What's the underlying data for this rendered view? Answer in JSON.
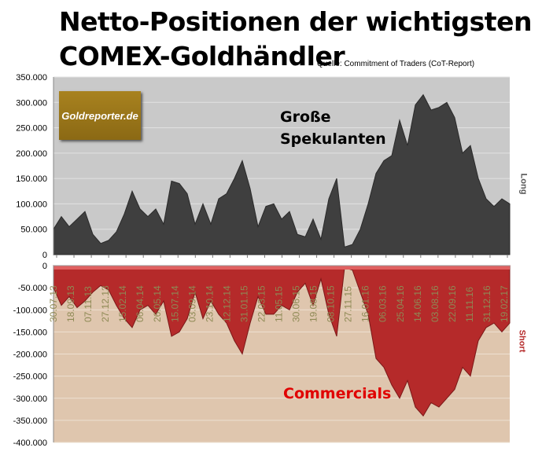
{
  "title_line1": "Netto-Positionen der wichtigsten",
  "title_line2": "COMEX-Goldhändler",
  "source": "Quelle: Commitment of Traders (CoT-Report)",
  "logo": "Goldreporter.de",
  "colors": {
    "top_bg": "#c9c9c9",
    "long": "#3f3f3f",
    "bottom_bg": "#dfc6ae",
    "short": "#b52a2a",
    "date": "#8e8a55",
    "commercials": "#e00000"
  },
  "chart_data": [
    {
      "type": "area",
      "title": "Große Spekulanten",
      "label_line1": "Große",
      "label_line2": "Spekulanten",
      "side_label": "Long",
      "ylim": [
        0,
        350000
      ],
      "yticks": [
        "0",
        "50.000",
        "100.000",
        "150.000",
        "200.000",
        "250.000",
        "300.000",
        "350.000"
      ],
      "values": [
        50000,
        75000,
        55000,
        70000,
        85000,
        40000,
        22000,
        28000,
        45000,
        80000,
        125000,
        90000,
        75000,
        90000,
        60000,
        145000,
        140000,
        120000,
        60000,
        100000,
        60000,
        110000,
        120000,
        150000,
        185000,
        130000,
        55000,
        95000,
        100000,
        70000,
        85000,
        40000,
        35000,
        70000,
        30000,
        110000,
        150000,
        15000,
        20000,
        50000,
        100000,
        160000,
        185000,
        195000,
        265000,
        215000,
        295000,
        315000,
        285000,
        290000,
        300000,
        270000,
        200000,
        215000,
        150000,
        110000,
        95000,
        110000,
        100000
      ]
    },
    {
      "type": "area",
      "title": "Commercials",
      "side_label": "Short",
      "ylim": [
        -400000,
        0
      ],
      "yticks": [
        "0",
        "-50.000",
        "-100.000",
        "-150.000",
        "-200.000",
        "-250.000",
        "-300.000",
        "-350.000",
        "-400.000"
      ],
      "x_labels": [
        "30.07.13",
        "18.09.13",
        "07.11.13",
        "27.12.13",
        "15.02.14",
        "06.04.14",
        "26.05.14",
        "15.07.14",
        "03.09.14",
        "23.10.14",
        "12.12.14",
        "31.01.15",
        "22.03.15",
        "11.05.15",
        "30.06.15",
        "19.08.15",
        "08.10.15",
        "27.11.15",
        "16.01.16",
        "06.03.16",
        "25.04.16",
        "14.06.16",
        "03.08.16",
        "22.09.16",
        "11.11.16",
        "31.12.16",
        "19.02.17"
      ],
      "values": [
        -50000,
        -90000,
        -70000,
        -95000,
        -80000,
        -60000,
        -45000,
        -55000,
        -90000,
        -120000,
        -140000,
        -100000,
        -90000,
        -110000,
        -80000,
        -160000,
        -150000,
        -120000,
        -60000,
        -120000,
        -80000,
        -110000,
        -130000,
        -170000,
        -200000,
        -130000,
        -70000,
        -110000,
        -110000,
        -90000,
        -100000,
        -60000,
        -40000,
        -90000,
        -30000,
        -110000,
        -160000,
        -5000,
        -10000,
        -60000,
        -110000,
        -210000,
        -230000,
        -270000,
        -300000,
        -260000,
        -320000,
        -340000,
        -310000,
        -320000,
        -300000,
        -280000,
        -230000,
        -250000,
        -170000,
        -140000,
        -130000,
        -150000,
        -130000
      ]
    }
  ]
}
